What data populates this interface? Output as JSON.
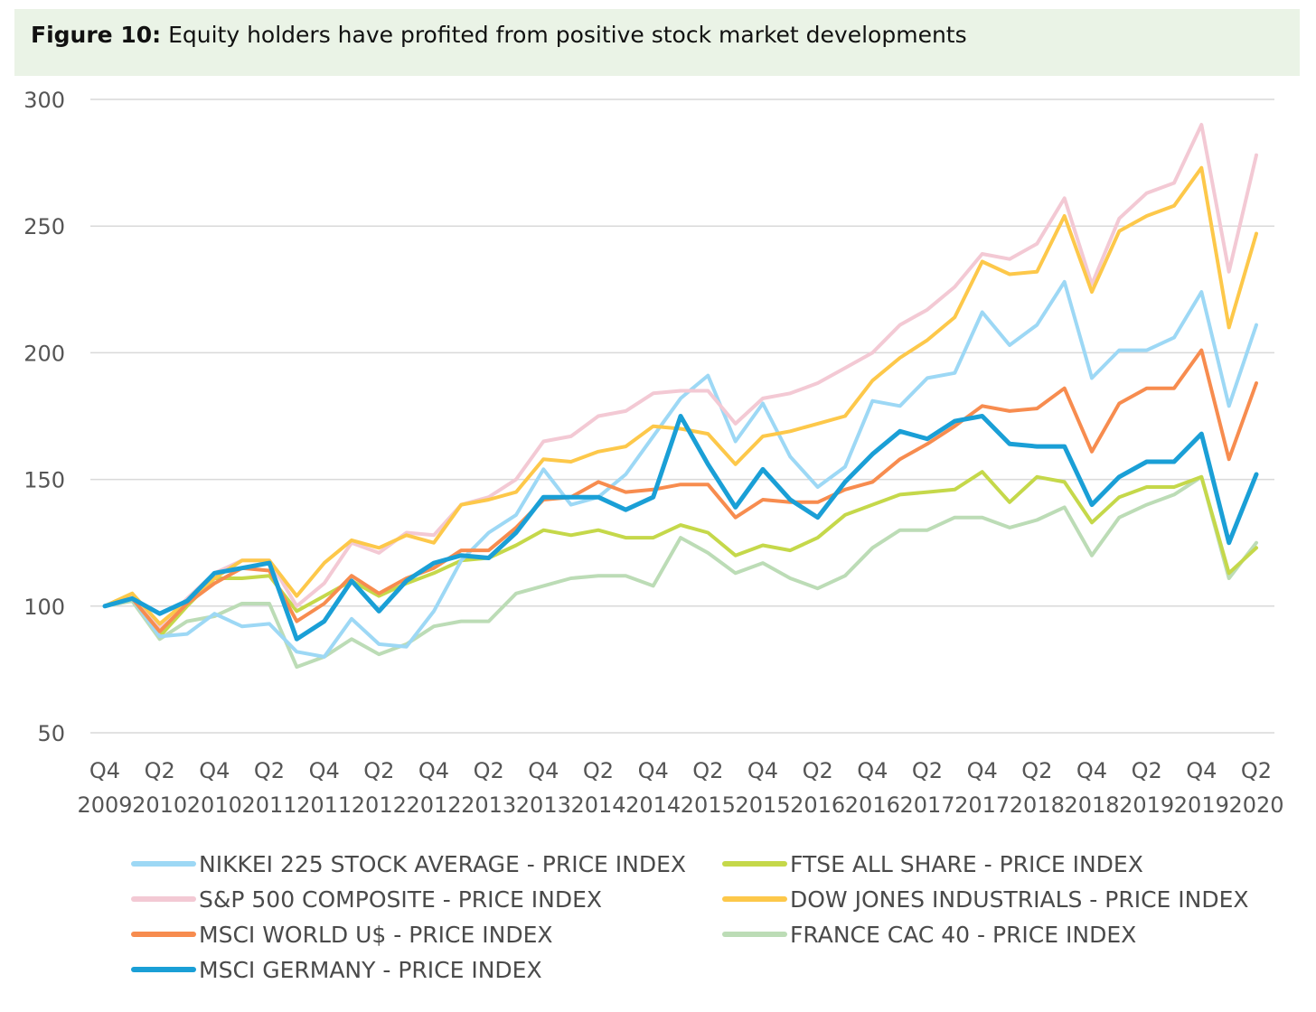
{
  "figure": {
    "label": "Figure 10:",
    "title": "Equity holders have profited from positive stock market developments"
  },
  "chart_data": {
    "type": "line",
    "ylim": [
      50,
      300
    ],
    "yticks": [
      50,
      100,
      150,
      200,
      250,
      300
    ],
    "grid": true,
    "legend_position": "bottom",
    "x": [
      "Q4 2009",
      "Q1 2010",
      "Q2 2010",
      "Q3 2010",
      "Q4 2010",
      "Q1 2011",
      "Q2 2011",
      "Q3 2011",
      "Q4 2011",
      "Q1 2012",
      "Q2 2012",
      "Q3 2012",
      "Q4 2012",
      "Q1 2013",
      "Q2 2013",
      "Q3 2013",
      "Q4 2013",
      "Q1 2014",
      "Q2 2014",
      "Q3 2014",
      "Q4 2014",
      "Q1 2015",
      "Q2 2015",
      "Q3 2015",
      "Q4 2015",
      "Q1 2016",
      "Q2 2016",
      "Q3 2016",
      "Q4 2016",
      "Q1 2017",
      "Q2 2017",
      "Q3 2017",
      "Q4 2017",
      "Q1 2018",
      "Q2 2018",
      "Q3 2018",
      "Q4 2018",
      "Q1 2019",
      "Q2 2019",
      "Q3 2019",
      "Q4 2019",
      "Q1 2020",
      "Q2 2020"
    ],
    "tick_labels": [
      {
        "q": "Q4",
        "y": "2009"
      },
      {
        "q": "Q2",
        "y": "2010"
      },
      {
        "q": "Q4",
        "y": "2010"
      },
      {
        "q": "Q2",
        "y": "2011"
      },
      {
        "q": "Q4",
        "y": "2011"
      },
      {
        "q": "Q2",
        "y": "2012"
      },
      {
        "q": "Q4",
        "y": "2012"
      },
      {
        "q": "Q2",
        "y": "2013"
      },
      {
        "q": "Q4",
        "y": "2013"
      },
      {
        "q": "Q2",
        "y": "2014"
      },
      {
        "q": "Q4",
        "y": "2014"
      },
      {
        "q": "Q2",
        "y": "2015"
      },
      {
        "q": "Q4",
        "y": "2015"
      },
      {
        "q": "Q2",
        "y": "2016"
      },
      {
        "q": "Q4",
        "y": "2016"
      },
      {
        "q": "Q2",
        "y": "2017"
      },
      {
        "q": "Q4",
        "y": "2017"
      },
      {
        "q": "Q2",
        "y": "2018"
      },
      {
        "q": "Q4",
        "y": "2018"
      },
      {
        "q": "Q2",
        "y": "2019"
      },
      {
        "q": "Q4",
        "y": "2019"
      },
      {
        "q": "Q2",
        "y": "2020"
      }
    ],
    "series": [
      {
        "name": "FRANCE CAC 40 - PRICE INDEX",
        "color": "#bcdcb6",
        "width": 4,
        "values": [
          100,
          102,
          87,
          94,
          96,
          101,
          101,
          76,
          80,
          87,
          81,
          85,
          92,
          94,
          94,
          105,
          108,
          111,
          112,
          112,
          108,
          127,
          121,
          113,
          117,
          111,
          107,
          112,
          123,
          130,
          130,
          135,
          135,
          131,
          134,
          139,
          120,
          135,
          140,
          144,
          151,
          111,
          125
        ]
      },
      {
        "name": "FTSE ALL SHARE - PRICE INDEX",
        "color": "#c5d84a",
        "width": 4,
        "values": [
          100,
          105,
          88,
          100,
          111,
          111,
          112,
          98,
          104,
          110,
          104,
          109,
          113,
          118,
          119,
          124,
          130,
          128,
          130,
          127,
          127,
          132,
          129,
          120,
          124,
          122,
          127,
          136,
          140,
          144,
          145,
          146,
          153,
          141,
          151,
          149,
          133,
          143,
          147,
          147,
          151,
          113,
          123
        ]
      },
      {
        "name": "NIKKEI 225 STOCK AVERAGE - PRICE INDEX",
        "color": "#9dd8f5",
        "width": 4,
        "values": [
          100,
          103,
          88,
          89,
          97,
          92,
          93,
          82,
          80,
          95,
          85,
          84,
          98,
          118,
          129,
          136,
          154,
          140,
          143,
          152,
          167,
          182,
          191,
          165,
          180,
          159,
          147,
          155,
          181,
          179,
          190,
          192,
          216,
          203,
          211,
          228,
          190,
          201,
          201,
          206,
          224,
          179,
          211
        ]
      },
      {
        "name": "S&P 500 COMPOSITE - PRICE INDEX",
        "color": "#f3c9d4",
        "width": 4,
        "values": [
          100,
          104,
          92,
          103,
          113,
          118,
          118,
          100,
          109,
          125,
          121,
          129,
          128,
          140,
          143,
          150,
          165,
          167,
          175,
          177,
          184,
          185,
          185,
          172,
          182,
          184,
          188,
          194,
          200,
          211,
          217,
          226,
          239,
          237,
          243,
          261,
          227,
          253,
          263,
          267,
          290,
          232,
          278
        ]
      },
      {
        "name": "DOW JONES INDUSTRIALS - PRICE INDEX",
        "color": "#fdc84a",
        "width": 4,
        "values": [
          100,
          105,
          93,
          102,
          111,
          118,
          118,
          104,
          117,
          126,
          123,
          128,
          125,
          140,
          142,
          145,
          158,
          157,
          161,
          163,
          171,
          170,
          168,
          156,
          167,
          169,
          172,
          175,
          189,
          198,
          205,
          214,
          236,
          231,
          232,
          254,
          224,
          248,
          254,
          258,
          273,
          210,
          247
        ]
      },
      {
        "name": "MSCI WORLD U$ - PRICE INDEX",
        "color": "#f78c4f",
        "width": 4,
        "values": [
          100,
          103,
          90,
          101,
          109,
          115,
          114,
          94,
          101,
          112,
          105,
          111,
          115,
          122,
          122,
          131,
          142,
          143,
          149,
          145,
          146,
          148,
          148,
          135,
          142,
          141,
          141,
          146,
          149,
          158,
          164,
          171,
          179,
          177,
          178,
          186,
          161,
          180,
          186,
          186,
          201,
          158,
          188
        ]
      },
      {
        "name": "MSCI GERMANY - PRICE INDEX",
        "color": "#1a9fd6",
        "width": 5,
        "values": [
          100,
          103,
          97,
          102,
          113,
          115,
          117,
          87,
          94,
          110,
          98,
          110,
          117,
          120,
          119,
          129,
          143,
          143,
          143,
          138,
          143,
          175,
          156,
          139,
          154,
          142,
          135,
          149,
          160,
          169,
          166,
          173,
          175,
          164,
          163,
          163,
          140,
          151,
          157,
          157,
          168,
          125,
          152
        ]
      }
    ],
    "legend": [
      {
        "name": "NIKKEI 225 STOCK AVERAGE - PRICE INDEX",
        "color": "#9dd8f5",
        "col": 0,
        "row": 0
      },
      {
        "name": "FTSE ALL SHARE - PRICE INDEX",
        "color": "#c5d84a",
        "col": 1,
        "row": 0
      },
      {
        "name": "S&P 500 COMPOSITE - PRICE INDEX",
        "color": "#f3c9d4",
        "col": 0,
        "row": 1
      },
      {
        "name": "DOW JONES INDUSTRIALS - PRICE INDEX",
        "color": "#fdc84a",
        "col": 1,
        "row": 1
      },
      {
        "name": "MSCI WORLD U$ - PRICE INDEX",
        "color": "#f78c4f",
        "col": 0,
        "row": 2
      },
      {
        "name": "FRANCE CAC 40 - PRICE INDEX",
        "color": "#bcdcb6",
        "col": 1,
        "row": 2
      },
      {
        "name": "MSCI GERMANY - PRICE INDEX",
        "color": "#1a9fd6",
        "col": 0,
        "row": 3
      }
    ]
  }
}
